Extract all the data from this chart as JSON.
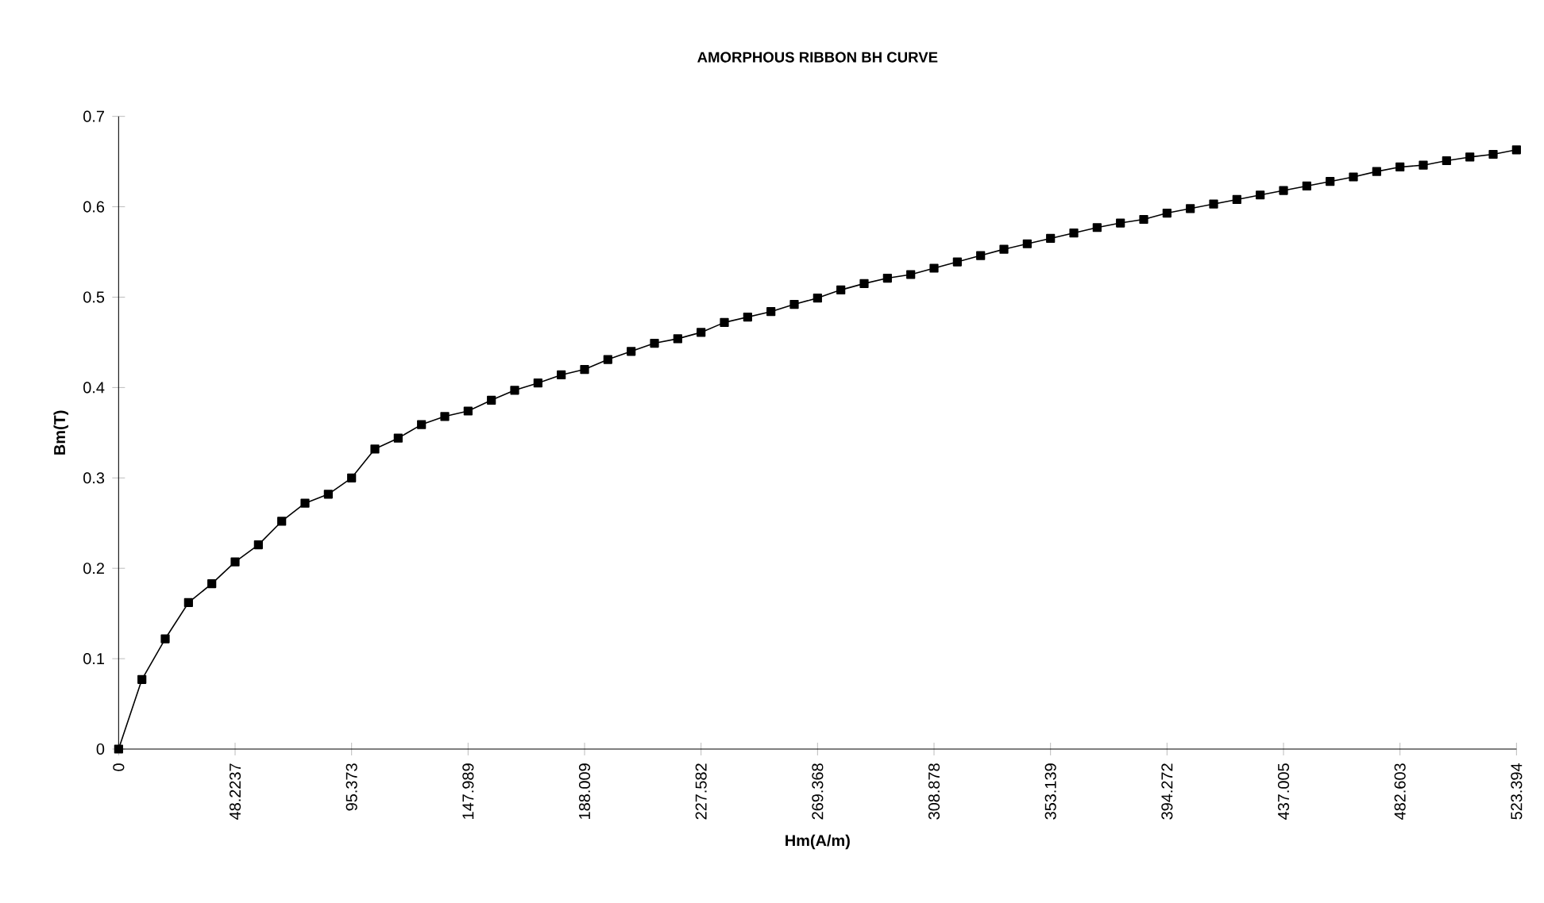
{
  "chart_data": {
    "type": "line",
    "title": "AMORPHOUS RIBBON BH CURVE",
    "xlabel": "Hm(A/m)",
    "ylabel": "Bm(T)",
    "categories": [
      "0",
      null,
      null,
      null,
      null,
      "48.2237",
      null,
      null,
      null,
      null,
      "95.373",
      null,
      null,
      null,
      null,
      "147.989",
      null,
      null,
      null,
      null,
      "188.009",
      null,
      null,
      null,
      null,
      "227.582",
      null,
      null,
      null,
      null,
      "269.368",
      null,
      null,
      null,
      null,
      "308.878",
      null,
      null,
      null,
      null,
      "353.139",
      null,
      null,
      null,
      null,
      "394.272",
      null,
      null,
      null,
      null,
      "437.005",
      null,
      null,
      null,
      null,
      "482.603",
      null,
      null,
      null,
      null,
      "523.394"
    ],
    "series": [
      {
        "color": "#000000",
        "values": [
          0,
          0.077,
          0.122,
          0.162,
          0.183,
          0.207,
          0.226,
          0.252,
          0.272,
          0.282,
          0.3,
          0.332,
          0.344,
          0.359,
          0.368,
          0.374,
          0.386,
          0.397,
          0.405,
          0.414,
          0.42,
          0.431,
          0.44,
          0.449,
          0.454,
          0.461,
          0.472,
          0.478,
          0.484,
          0.492,
          0.499,
          0.508,
          0.515,
          0.521,
          0.525,
          0.532,
          0.539,
          0.546,
          0.553,
          0.559,
          0.565,
          0.571,
          0.577,
          0.582,
          0.586,
          0.593,
          0.598,
          0.603,
          0.608,
          0.613,
          0.618,
          0.623,
          0.628,
          0.633,
          0.639,
          0.644,
          0.646,
          0.651,
          0.655,
          0.658,
          0.663
        ]
      }
    ],
    "ylim": [
      0,
      0.7
    ],
    "yticks": [
      0,
      0.1,
      0.2,
      0.3,
      0.4,
      0.5,
      0.6,
      0.7
    ],
    "marker": "square",
    "line_style": "solid"
  }
}
